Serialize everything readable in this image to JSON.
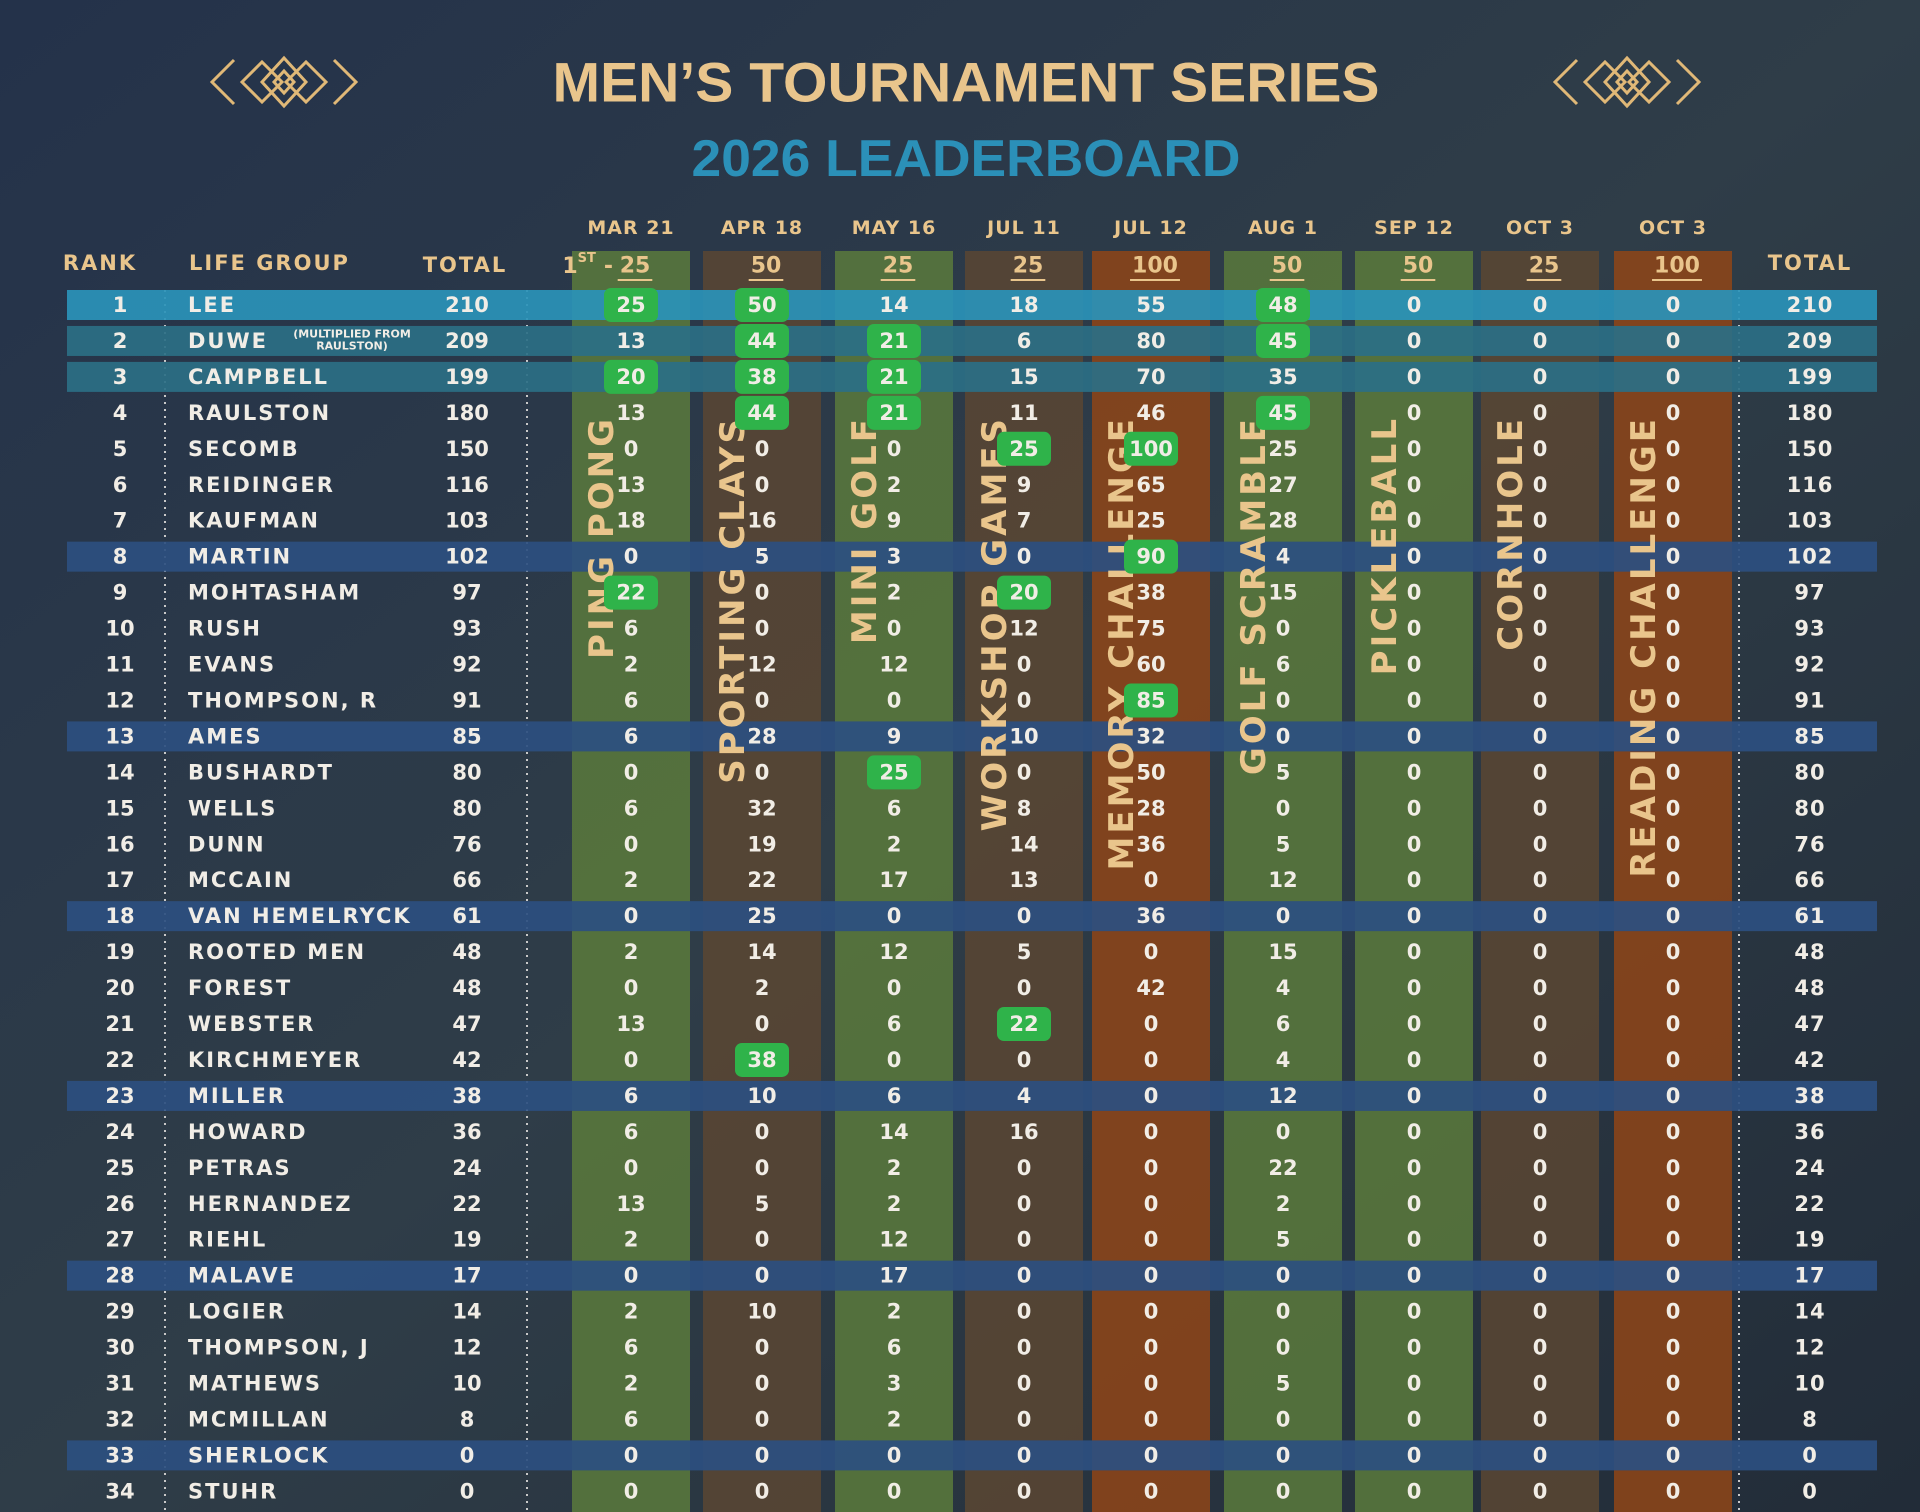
{
  "header": {
    "title": "MEN’S TOURNAMENT SERIES",
    "subtitle": "2026 LEADERBOARD"
  },
  "table": {
    "columns": {
      "rank": "RANK",
      "group": "LIFE GROUP",
      "total": "TOTAL",
      "final_total": "TOTAL"
    },
    "events": [
      {
        "date": "MAR 21",
        "max_prefix": [
          "1",
          "ST",
          "-"
        ],
        "max": 25,
        "name": "PING PONG",
        "color": "#5b7a3c"
      },
      {
        "date": "APR 18",
        "max": 50,
        "name": "SPORTING CLAYS",
        "color": "#5a4632"
      },
      {
        "date": "MAY 16",
        "max": 25,
        "name": "MINI GOLF",
        "color": "#5b7a3c"
      },
      {
        "date": "JUL 11",
        "max": 25,
        "name": "WORKSHOP GAMES",
        "color": "#5a4632"
      },
      {
        "date": "JUL 12",
        "max": 100,
        "name": "MEMORY CHALLENGE",
        "color": "#8f4518"
      },
      {
        "date": "AUG 1",
        "max": 50,
        "name": "GOLF SCRAMBLE",
        "color": "#5b7a3c"
      },
      {
        "date": "SEP 12",
        "max": 50,
        "name": "PICKLEBALL",
        "color": "#5b7a3c"
      },
      {
        "date": "OCT 3",
        "max": 25,
        "name": "CORNHOLE",
        "color": "#5a4632"
      },
      {
        "date": "OCT 3",
        "max": 100,
        "name": "READING CHALLENGE",
        "color": "#8f4518"
      }
    ],
    "rows": [
      {
        "rank": 1,
        "group": "LEE",
        "total": 210,
        "scores": [
          25,
          50,
          14,
          18,
          55,
          48,
          0,
          0,
          0
        ],
        "highlight": [
          0,
          1,
          5
        ],
        "band": "#2a93b8"
      },
      {
        "rank": 2,
        "group": "DUWE",
        "note": [
          "(MULTIPLIED FROM",
          "RAULSTON)"
        ],
        "total": 209,
        "scores": [
          13,
          44,
          21,
          6,
          80,
          45,
          0,
          0,
          0
        ],
        "highlight": [
          1,
          2,
          5
        ],
        "band": "#2b6f86"
      },
      {
        "rank": 3,
        "group": "CAMPBELL",
        "total": 199,
        "scores": [
          20,
          38,
          21,
          15,
          70,
          35,
          0,
          0,
          0
        ],
        "highlight": [
          0,
          1,
          2
        ],
        "band": "#2b6f86"
      },
      {
        "rank": 4,
        "group": "RAULSTON",
        "total": 180,
        "scores": [
          13,
          44,
          21,
          11,
          46,
          45,
          0,
          0,
          0
        ],
        "highlight": [
          1,
          2,
          5
        ]
      },
      {
        "rank": 5,
        "group": "SECOMB",
        "total": 150,
        "scores": [
          0,
          0,
          0,
          25,
          100,
          25,
          0,
          0,
          0
        ],
        "highlight": [
          3,
          4
        ]
      },
      {
        "rank": 6,
        "group": "REIDINGER",
        "total": 116,
        "scores": [
          13,
          0,
          2,
          9,
          65,
          27,
          0,
          0,
          0
        ]
      },
      {
        "rank": 7,
        "group": "KAUFMAN",
        "total": 103,
        "scores": [
          18,
          16,
          9,
          7,
          25,
          28,
          0,
          0,
          0
        ]
      },
      {
        "rank": 8,
        "group": "MARTIN",
        "total": 102,
        "scores": [
          0,
          5,
          3,
          0,
          90,
          4,
          0,
          0,
          0
        ],
        "highlight": [
          4
        ],
        "band": "#2d4f80"
      },
      {
        "rank": 9,
        "group": "MOHTASHAM",
        "total": 97,
        "scores": [
          22,
          0,
          2,
          20,
          38,
          15,
          0,
          0,
          0
        ],
        "highlight": [
          0,
          3
        ]
      },
      {
        "rank": 10,
        "group": "RUSH",
        "total": 93,
        "scores": [
          6,
          0,
          0,
          12,
          75,
          0,
          0,
          0,
          0
        ]
      },
      {
        "rank": 11,
        "group": "EVANS",
        "total": 92,
        "scores": [
          2,
          12,
          12,
          0,
          60,
          6,
          0,
          0,
          0
        ]
      },
      {
        "rank": 12,
        "group": "THOMPSON, R",
        "total": 91,
        "scores": [
          6,
          0,
          0,
          0,
          85,
          0,
          0,
          0,
          0
        ],
        "highlight": [
          4
        ]
      },
      {
        "rank": 13,
        "group": "AMES",
        "total": 85,
        "scores": [
          6,
          28,
          9,
          10,
          32,
          0,
          0,
          0,
          0
        ],
        "band": "#2d4f80"
      },
      {
        "rank": 14,
        "group": "BUSHARDT",
        "total": 80,
        "scores": [
          0,
          0,
          25,
          0,
          50,
          5,
          0,
          0,
          0
        ],
        "highlight": [
          2
        ]
      },
      {
        "rank": 15,
        "group": "WELLS",
        "total": 80,
        "scores": [
          6,
          32,
          6,
          8,
          28,
          0,
          0,
          0,
          0
        ]
      },
      {
        "rank": 16,
        "group": "DUNN",
        "total": 76,
        "scores": [
          0,
          19,
          2,
          14,
          36,
          5,
          0,
          0,
          0
        ]
      },
      {
        "rank": 17,
        "group": "MCCAIN",
        "total": 66,
        "scores": [
          2,
          22,
          17,
          13,
          0,
          12,
          0,
          0,
          0
        ]
      },
      {
        "rank": 18,
        "group": "VAN HEMELRYCK",
        "total": 61,
        "scores": [
          0,
          25,
          0,
          0,
          36,
          0,
          0,
          0,
          0
        ],
        "band": "#2d4f80"
      },
      {
        "rank": 19,
        "group": "ROOTED MEN",
        "total": 48,
        "scores": [
          2,
          14,
          12,
          5,
          0,
          15,
          0,
          0,
          0
        ]
      },
      {
        "rank": 20,
        "group": "FOREST",
        "total": 48,
        "scores": [
          0,
          2,
          0,
          0,
          42,
          4,
          0,
          0,
          0
        ]
      },
      {
        "rank": 21,
        "group": "WEBSTER",
        "total": 47,
        "scores": [
          13,
          0,
          6,
          22,
          0,
          6,
          0,
          0,
          0
        ],
        "highlight": [
          3
        ]
      },
      {
        "rank": 22,
        "group": "KIRCHMEYER",
        "total": 42,
        "scores": [
          0,
          38,
          0,
          0,
          0,
          4,
          0,
          0,
          0
        ],
        "highlight": [
          1
        ]
      },
      {
        "rank": 23,
        "group": "MILLER",
        "total": 38,
        "scores": [
          6,
          10,
          6,
          4,
          0,
          12,
          0,
          0,
          0
        ],
        "band": "#2d4f80"
      },
      {
        "rank": 24,
        "group": "HOWARD",
        "total": 36,
        "scores": [
          6,
          0,
          14,
          16,
          0,
          0,
          0,
          0,
          0
        ]
      },
      {
        "rank": 25,
        "group": "PETRAS",
        "total": 24,
        "scores": [
          0,
          0,
          2,
          0,
          0,
          22,
          0,
          0,
          0
        ]
      },
      {
        "rank": 26,
        "group": "HERNANDEZ",
        "total": 22,
        "scores": [
          13,
          5,
          2,
          0,
          0,
          2,
          0,
          0,
          0
        ]
      },
      {
        "rank": 27,
        "group": "RIEHL",
        "total": 19,
        "scores": [
          2,
          0,
          12,
          0,
          0,
          5,
          0,
          0,
          0
        ]
      },
      {
        "rank": 28,
        "group": "MALAVE",
        "total": 17,
        "scores": [
          0,
          0,
          17,
          0,
          0,
          0,
          0,
          0,
          0
        ],
        "band": "#2d4f80"
      },
      {
        "rank": 29,
        "group": "LOGIER",
        "total": 14,
        "scores": [
          2,
          10,
          2,
          0,
          0,
          0,
          0,
          0,
          0
        ]
      },
      {
        "rank": 30,
        "group": "THOMPSON, J",
        "total": 12,
        "scores": [
          6,
          0,
          6,
          0,
          0,
          0,
          0,
          0,
          0
        ]
      },
      {
        "rank": 31,
        "group": "MATHEWS",
        "total": 10,
        "scores": [
          2,
          0,
          3,
          0,
          0,
          5,
          0,
          0,
          0
        ]
      },
      {
        "rank": 32,
        "group": "MCMILLAN",
        "total": 8,
        "scores": [
          6,
          0,
          2,
          0,
          0,
          0,
          0,
          0,
          0
        ]
      },
      {
        "rank": 33,
        "group": "SHERLOCK",
        "total": 0,
        "scores": [
          0,
          0,
          0,
          0,
          0,
          0,
          0,
          0,
          0
        ],
        "band": "#2d4f80"
      },
      {
        "rank": 34,
        "group": "STUHR",
        "total": 0,
        "scores": [
          0,
          0,
          0,
          0,
          0,
          0,
          0,
          0,
          0
        ]
      }
    ]
  }
}
